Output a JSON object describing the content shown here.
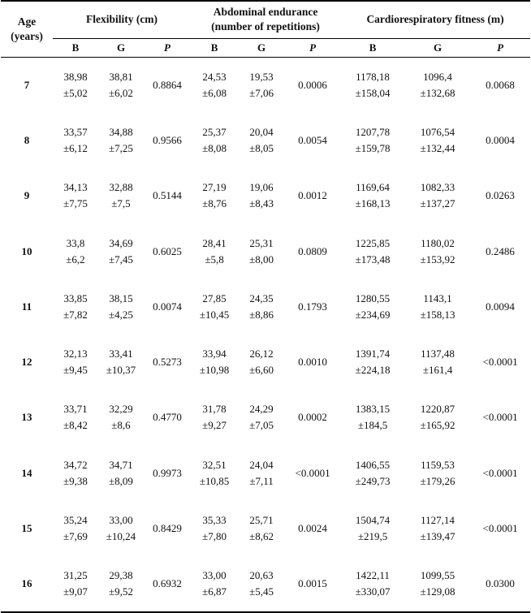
{
  "headers": {
    "age": "Age",
    "age_unit": "(years)",
    "flex": "Flexibility (cm)",
    "abd1": "Abdominal endurance",
    "abd2": "(number of repetitions)",
    "cardio": "Cardiorespiratory fitness (m)",
    "b": "B",
    "g": "G",
    "p": "P"
  },
  "rows": [
    {
      "age": "7",
      "f_b_mean": "38,98",
      "f_b_sd": "±5,02",
      "f_g_mean": "38,81",
      "f_g_sd": "±6,02",
      "f_p": "0.8864",
      "a_b_mean": "24,53",
      "a_b_sd": "±6,08",
      "a_g_mean": "19,53",
      "a_g_sd": "±7,06",
      "a_p": "0.0006",
      "c_b_mean": "1178,18",
      "c_b_sd": "±158,04",
      "c_g_mean": "1096,4",
      "c_g_sd": "±132,68",
      "c_p": "0.0068"
    },
    {
      "age": "8",
      "f_b_mean": "33,57",
      "f_b_sd": "±6,12",
      "f_g_mean": "34,88",
      "f_g_sd": "±7,25",
      "f_p": "0.9566",
      "a_b_mean": "25,37",
      "a_b_sd": "±8,08",
      "a_g_mean": "20,04",
      "a_g_sd": "±8,05",
      "a_p": "0.0054",
      "c_b_mean": "1207,78",
      "c_b_sd": "±159,78",
      "c_g_mean": "1076,54",
      "c_g_sd": "±132,44",
      "c_p": "0.0004"
    },
    {
      "age": "9",
      "f_b_mean": "34,13",
      "f_b_sd": "±7,75",
      "f_g_mean": "32,88",
      "f_g_sd": "±7,5",
      "f_p": "0.5144",
      "a_b_mean": "27,19",
      "a_b_sd": "±8,76",
      "a_g_mean": "19,06",
      "a_g_sd": "±8,43",
      "a_p": "0.0012",
      "c_b_mean": "1169,64",
      "c_b_sd": "±168,13",
      "c_g_mean": "1082,33",
      "c_g_sd": "±137,27",
      "c_p": "0.0263"
    },
    {
      "age": "10",
      "f_b_mean": "33,8",
      "f_b_sd": "±6,2",
      "f_g_mean": "34,69",
      "f_g_sd": "±7,45",
      "f_p": "0.6025",
      "a_b_mean": "28,41",
      "a_b_sd": "±5,8",
      "a_g_mean": "25,31",
      "a_g_sd": "±8,00",
      "a_p": "0.0809",
      "c_b_mean": "1225,85",
      "c_b_sd": "±173,48",
      "c_g_mean": "1180,02",
      "c_g_sd": "±153,92",
      "c_p": "0.2486"
    },
    {
      "age": "11",
      "f_b_mean": "33,85",
      "f_b_sd": "±7,82",
      "f_g_mean": "38,15",
      "f_g_sd": "±4,25",
      "f_p": "0.0074",
      "a_b_mean": "27,85",
      "a_b_sd": "±10,45",
      "a_g_mean": "24,35",
      "a_g_sd": "±8,86",
      "a_p": "0.1793",
      "c_b_mean": "1280,55",
      "c_b_sd": "±234,69",
      "c_g_mean": "1143,1",
      "c_g_sd": "±158,13",
      "c_p": "0.0094"
    },
    {
      "age": "12",
      "f_b_mean": "32,13",
      "f_b_sd": "±9,45",
      "f_g_mean": "33,41",
      "f_g_sd": "±10,37",
      "f_p": "0.5273",
      "a_b_mean": "33,94",
      "a_b_sd": "±10,98",
      "a_g_mean": "26,12",
      "a_g_sd": "±6,60",
      "a_p": "0.0010",
      "c_b_mean": "1391,74",
      "c_b_sd": "±224,18",
      "c_g_mean": "1137,48",
      "c_g_sd": "±161,4",
      "c_p": "<0.0001"
    },
    {
      "age": "13",
      "f_b_mean": "33,71",
      "f_b_sd": "±8,42",
      "f_g_mean": "32,29",
      "f_g_sd": "±8,6",
      "f_p": "0.4770",
      "a_b_mean": "31,78",
      "a_b_sd": "±9,27",
      "a_g_mean": "24,29",
      "a_g_sd": "±7,05",
      "a_p": "0.0002",
      "c_b_mean": "1383,15",
      "c_b_sd": "±184,5",
      "c_g_mean": "1220,87",
      "c_g_sd": "±165,92",
      "c_p": "<0.0001"
    },
    {
      "age": "14",
      "f_b_mean": "34,72",
      "f_b_sd": "±9,38",
      "f_g_mean": "34,71",
      "f_g_sd": "±8,09",
      "f_p": "0.9973",
      "a_b_mean": "32,51",
      "a_b_sd": "±10,85",
      "a_g_mean": "24,04",
      "a_g_sd": "±7,11",
      "a_p": "<0.0001",
      "c_b_mean": "1406,55",
      "c_b_sd": "±249,73",
      "c_g_mean": "1159,53",
      "c_g_sd": "±179,26",
      "c_p": "<0.0001"
    },
    {
      "age": "15",
      "f_b_mean": "35,24",
      "f_b_sd": "±7,69",
      "f_g_mean": "33,00",
      "f_g_sd": "±10,24",
      "f_p": "0.8429",
      "a_b_mean": "35,33",
      "a_b_sd": "±7,80",
      "a_g_mean": "25,71",
      "a_g_sd": "±8,62",
      "a_p": "0.0024",
      "c_b_mean": "1504,74",
      "c_b_sd": "±219,5",
      "c_g_mean": "1127,14",
      "c_g_sd": "±139,47",
      "c_p": "<0.0001"
    },
    {
      "age": "16",
      "f_b_mean": "31,25",
      "f_b_sd": "±9,07",
      "f_g_mean": "29,38",
      "f_g_sd": "±9,52",
      "f_p": "0.6932",
      "a_b_mean": "33,00",
      "a_b_sd": "±6,87",
      "a_g_mean": "20,63",
      "a_g_sd": "±5,45",
      "a_p": "0.0015",
      "c_b_mean": "1422,11",
      "c_b_sd": "±330,07",
      "c_g_mean": "1099,55",
      "c_g_sd": "±129,08",
      "c_p": "0.0300"
    }
  ]
}
